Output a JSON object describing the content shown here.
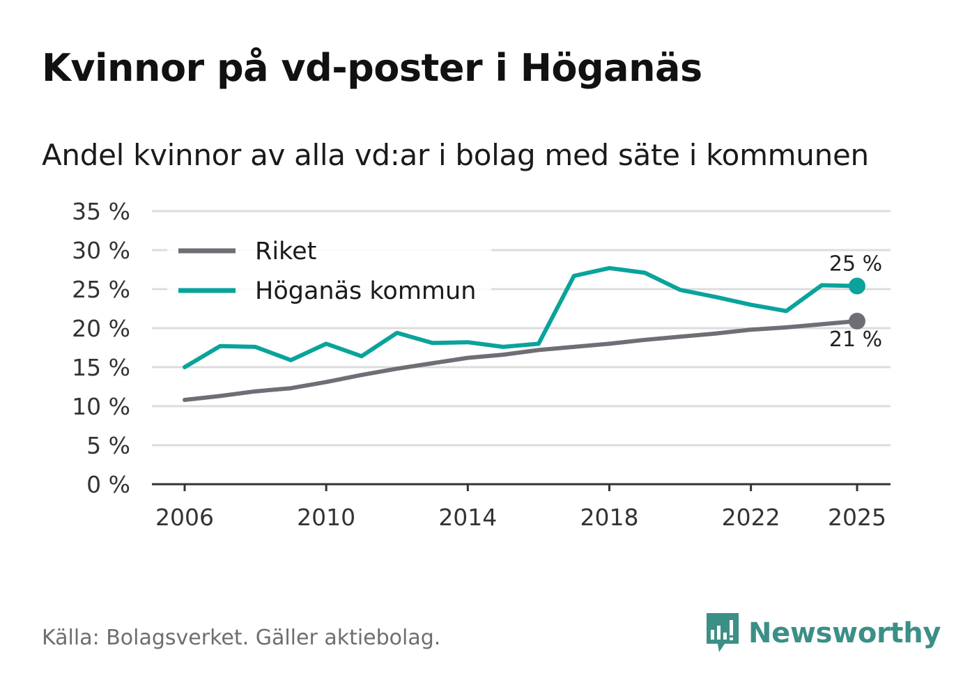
{
  "title": "Kvinnor på vd-poster i Höganäs",
  "subtitle": "Andel kvinnor av alla vd:ar i bolag med säte i kommunen",
  "source": "Källa: Bolagsverket. Gäller aktiebolag.",
  "brand": "Newsworthy",
  "colors": {
    "riket": "#6f6e75",
    "kommun": "#0aa39b",
    "grid": "#dcdcdc",
    "axis": "#333333",
    "brand": "#3b8f86"
  },
  "chart_data": {
    "type": "line",
    "title": "Andel kvinnor av alla vd:ar i bolag med säte i kommunen",
    "xlabel": "",
    "ylabel": "",
    "x": [
      2006,
      2007,
      2008,
      2009,
      2010,
      2011,
      2012,
      2013,
      2014,
      2015,
      2016,
      2017,
      2018,
      2019,
      2020,
      2021,
      2022,
      2023,
      2024,
      2025
    ],
    "xlim": [
      2005,
      2026
    ],
    "ylim": [
      0,
      35
    ],
    "y_ticks": [
      0,
      5,
      10,
      15,
      20,
      25,
      30,
      35
    ],
    "y_tick_labels": [
      "0 %",
      "5 %",
      "10 %",
      "15 %",
      "20 %",
      "25 %",
      "30 %",
      "35 %"
    ],
    "x_ticks": [
      2006,
      2010,
      2014,
      2018,
      2022,
      2025
    ],
    "x_tick_labels": [
      "2006",
      "2010",
      "2014",
      "2018",
      "2022",
      "2025"
    ],
    "grid": true,
    "legend_position": "top-left",
    "series": [
      {
        "name": "Riket",
        "key": "riket",
        "values": [
          10.8,
          11.3,
          11.9,
          12.3,
          13.1,
          14.0,
          14.8,
          15.5,
          16.2,
          16.6,
          17.2,
          17.6,
          18.0,
          18.5,
          18.9,
          19.3,
          19.8,
          20.1,
          20.5,
          20.9
        ],
        "end_label": "21 %"
      },
      {
        "name": "Höganäs kommun",
        "key": "kommun",
        "values": [
          15.0,
          17.7,
          17.6,
          15.9,
          18.0,
          16.4,
          19.4,
          18.1,
          18.2,
          17.6,
          18.0,
          26.7,
          27.7,
          27.1,
          24.9,
          24.0,
          23.0,
          22.2,
          25.5,
          25.4
        ],
        "end_label": "25 %"
      }
    ]
  }
}
